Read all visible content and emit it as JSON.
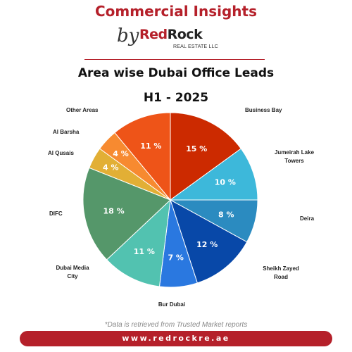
{
  "header": {
    "title": "Commercial Insights",
    "by": "by",
    "logo_red": "Red",
    "logo_black": "Rock",
    "logo_sub": "REAL ESTATE LLC"
  },
  "colors": {
    "brand": "#b5202a",
    "dark": "#222222"
  },
  "chart_data": {
    "type": "pie",
    "title": "Area wise Dubai Office Leads",
    "subtitle": "H1 - 2025",
    "value_suffix": " %",
    "slices": [
      {
        "name": "Business Bay",
        "value": 15,
        "label": "15 %",
        "color": "#cc2a00"
      },
      {
        "name": "Jumeirah Lake Towers",
        "value": 10,
        "label": "10 %",
        "color": "#3db8da"
      },
      {
        "name": "Deira",
        "value": 8,
        "label": "8 %",
        "color": "#2b8bc0"
      },
      {
        "name": "Sheikh Zayed Road",
        "value": 12,
        "label": "12 %",
        "color": "#0848a8"
      },
      {
        "name": "Bur Dubai",
        "value": 7,
        "label": "7 %",
        "color": "#2a78e0"
      },
      {
        "name": "Dubai Media City",
        "value": 11,
        "label": "11 %",
        "color": "#52c2b0"
      },
      {
        "name": "DIFC",
        "value": 18,
        "label": "18 %",
        "color": "#55976a"
      },
      {
        "name": "Al Qusais",
        "value": 4,
        "label": "4 %",
        "color": "#e2af35"
      },
      {
        "name": "Al Barsha",
        "value": 4,
        "label": "4 %",
        "color": "#f78a30"
      },
      {
        "name": "Other Areas",
        "value": 11,
        "label": "11 %",
        "color": "#ee5418"
      }
    ]
  },
  "footnote": "*Data is retrieved from Trusted Market reports",
  "footer": {
    "url": "www.redrockre.ae"
  }
}
